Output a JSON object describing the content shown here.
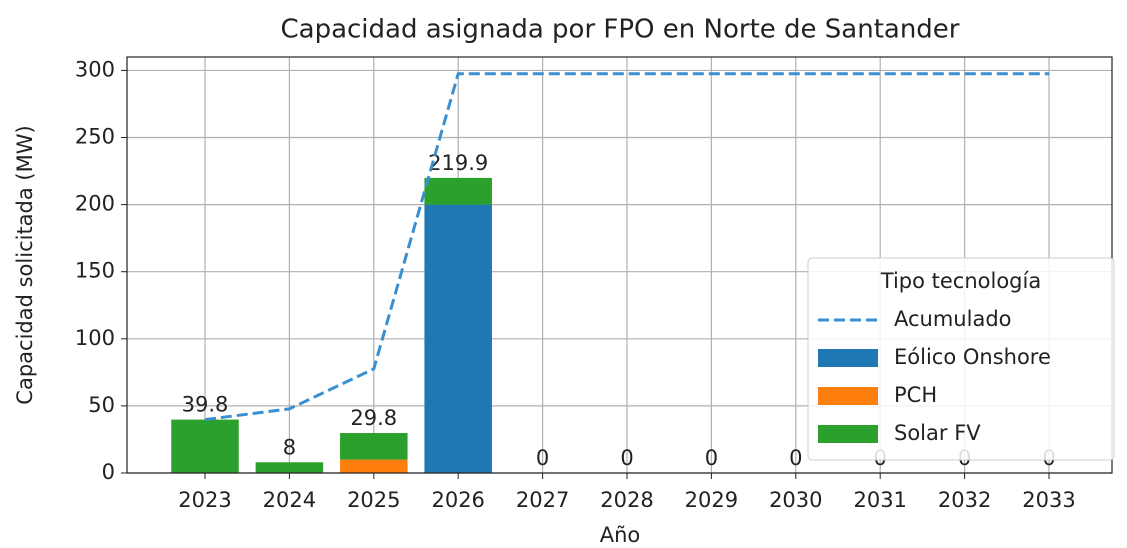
{
  "chart_data": {
    "type": "bar",
    "stacked": true,
    "title": "Capacidad asignada por FPO en Norte de Santander",
    "x_label": "Año",
    "y_label": "Capacidad solicitada (MW)",
    "categories": [
      "2023",
      "2024",
      "2025",
      "2026",
      "2027",
      "2028",
      "2029",
      "2030",
      "2031",
      "2032",
      "2033"
    ],
    "series": [
      {
        "name": "Acumulado",
        "type": "line",
        "dashed": true,
        "color": "#3a8fd0",
        "values": [
          39.8,
          47.8,
          77.6,
          297.5,
          297.5,
          297.5,
          297.5,
          297.5,
          297.5,
          297.5,
          297.5
        ]
      },
      {
        "name": "Eólico Onshore",
        "type": "bar",
        "color": "#1f77b4",
        "values": [
          0,
          0,
          0,
          200,
          0,
          0,
          0,
          0,
          0,
          0,
          0
        ]
      },
      {
        "name": "PCH",
        "type": "bar",
        "color": "#ff7f0e",
        "values": [
          0,
          0,
          10,
          0,
          0,
          0,
          0,
          0,
          0,
          0,
          0
        ]
      },
      {
        "name": "Solar FV",
        "type": "bar",
        "color": "#2ca02c",
        "values": [
          39.8,
          8,
          19.8,
          19.9,
          0,
          0,
          0,
          0,
          0,
          0,
          0
        ]
      }
    ],
    "totals": [
      39.8,
      8,
      29.8,
      219.9,
      0,
      0,
      0,
      0,
      0,
      0,
      0
    ],
    "ylim": [
      0,
      310
    ],
    "yticks": [
      0,
      50,
      100,
      150,
      200,
      250,
      300
    ],
    "grid": true,
    "legend_title": "Tipo tecnología",
    "legend": "lower right"
  }
}
